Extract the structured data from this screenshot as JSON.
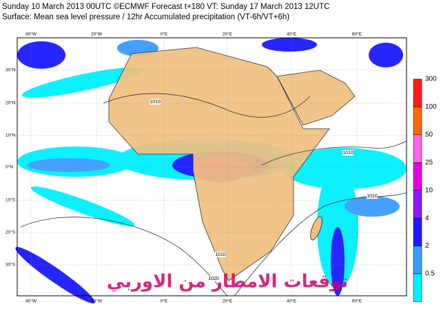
{
  "header": {
    "line1": "Sunday 10 March 2013 00UTC ©ECMWF Forecast t+180 VT: Sunday 17 March 2013 12UTC",
    "line2": "Surface: Mean sea level pressure / 12hr Accumulated precipitation (VT-6h/VT+6h)"
  },
  "map": {
    "lon_labels": [
      "40°W",
      "20°W",
      "0°E",
      "20°E",
      "40°E",
      "60°E"
    ],
    "lat_labels": [
      "30°N",
      "20°N",
      "10°N",
      "0°N",
      "10°S",
      "20°S",
      "30°S"
    ],
    "isobar_labels": [
      "1010",
      "1010",
      "1010",
      "1010",
      "1020"
    ],
    "watermark": "توقعات الامطار من الاوربي"
  },
  "colorbar": {
    "labels": [
      "300",
      "100",
      "50",
      "25",
      "10",
      "4",
      "2",
      "0.5"
    ],
    "colors": [
      "#ff1a1a",
      "#ff6a00",
      "#ff66dd",
      "#e600e6",
      "#8a1aff",
      "#1a1aff",
      "#3a9cff",
      "#00f0ff"
    ]
  }
}
